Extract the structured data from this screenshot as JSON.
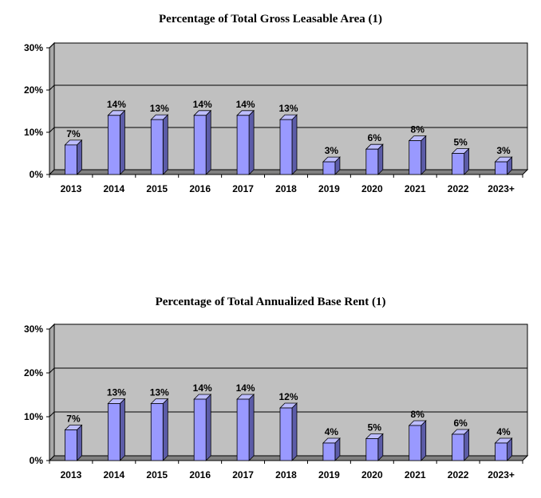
{
  "chart_data": [
    {
      "type": "bar",
      "title": "Percentage of Total Gross Leasable Area (1)",
      "categories": [
        "2013",
        "2014",
        "2015",
        "2016",
        "2017",
        "2018",
        "2019",
        "2020",
        "2021",
        "2022",
        "2023+"
      ],
      "values": [
        7,
        14,
        13,
        14,
        14,
        13,
        3,
        6,
        8,
        5,
        3
      ],
      "value_labels": [
        "7%",
        "14%",
        "13%",
        "14%",
        "14%",
        "13%",
        "3%",
        "6%",
        "8%",
        "5%",
        "3%"
      ],
      "ylim": [
        0,
        30
      ],
      "yticks": [
        "0%",
        "10%",
        "20%",
        "30%"
      ],
      "grid": true,
      "colors": {
        "bar": "#9999ff",
        "bar_side": "#5c5ca8",
        "bar_top": "#bdbdff",
        "plot_bg": "#c0c0c0"
      }
    },
    {
      "type": "bar",
      "title": "Percentage of Total Annualized Base Rent (1)",
      "categories": [
        "2013",
        "2014",
        "2015",
        "2016",
        "2017",
        "2018",
        "2019",
        "2020",
        "2021",
        "2022",
        "2023+"
      ],
      "values": [
        7,
        13,
        13,
        14,
        14,
        12,
        4,
        5,
        8,
        6,
        4
      ],
      "value_labels": [
        "7%",
        "13%",
        "13%",
        "14%",
        "14%",
        "12%",
        "4%",
        "5%",
        "8%",
        "6%",
        "4%"
      ],
      "ylim": [
        0,
        30
      ],
      "yticks": [
        "0%",
        "10%",
        "20%",
        "30%"
      ],
      "grid": true,
      "colors": {
        "bar": "#9999ff",
        "bar_side": "#5c5ca8",
        "bar_top": "#bdbdff",
        "plot_bg": "#c0c0c0"
      }
    }
  ]
}
